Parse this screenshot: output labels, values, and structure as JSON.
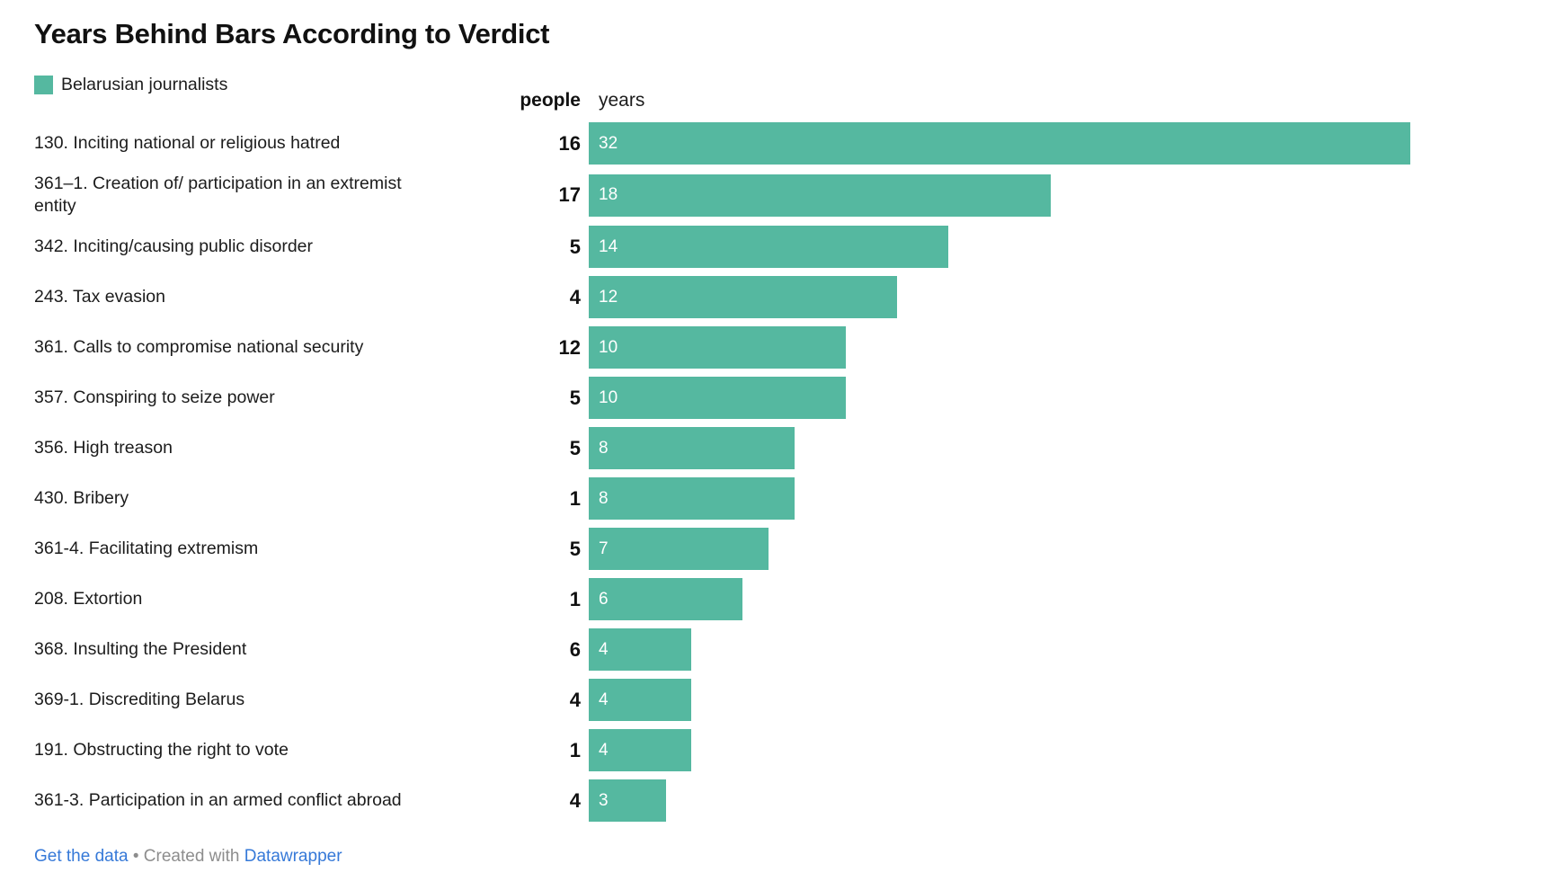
{
  "title": "Years Behind Bars According to Verdict",
  "legend": {
    "label": "Belarusian journalists",
    "swatch_color": "#55b8a0"
  },
  "columns": {
    "people": "people",
    "years": "years"
  },
  "chart_data": {
    "type": "bar",
    "title": "Years Behind Bars According to Verdict",
    "legend_entries": [
      "Belarusian journalists"
    ],
    "orientation": "horizontal",
    "bar_color": "#55b8a0",
    "x_max": 32,
    "value_labels_inside_bars": true,
    "rows": [
      {
        "label": "130. Inciting national or religious hatred",
        "people": 16,
        "years": 32
      },
      {
        "label": "361–1. Creation of/ participation in an extremist entity",
        "people": 17,
        "years": 18
      },
      {
        "label": "342. Inciting/causing public disorder",
        "people": 5,
        "years": 14
      },
      {
        "label": "243. Tax evasion",
        "people": 4,
        "years": 12
      },
      {
        "label": "361. Calls to compromise national security",
        "people": 12,
        "years": 10
      },
      {
        "label": "357. Conspiring to seize power",
        "people": 5,
        "years": 10
      },
      {
        "label": "356. High treason",
        "people": 5,
        "years": 8
      },
      {
        "label": "430. Bribery",
        "people": 1,
        "years": 8
      },
      {
        "label": "361-4. Facilitating extremism",
        "people": 5,
        "years": 7
      },
      {
        "label": "208. Extortion",
        "people": 1,
        "years": 6
      },
      {
        "label": "368. Insulting the President",
        "people": 6,
        "years": 4
      },
      {
        "label": "369-1. Discrediting Belarus",
        "people": 4,
        "years": 4
      },
      {
        "label": "191. Obstructing the right to vote",
        "people": 1,
        "years": 4
      },
      {
        "label": "361-3. Participation in an armed conflict abroad",
        "people": 4,
        "years": 3
      }
    ]
  },
  "footer": {
    "get_data_label": "Get the data",
    "separator": "•",
    "created_with": "Created with",
    "brand": "Datawrapper",
    "link_color": "#3679d8",
    "muted_color": "#8d8d8d"
  }
}
